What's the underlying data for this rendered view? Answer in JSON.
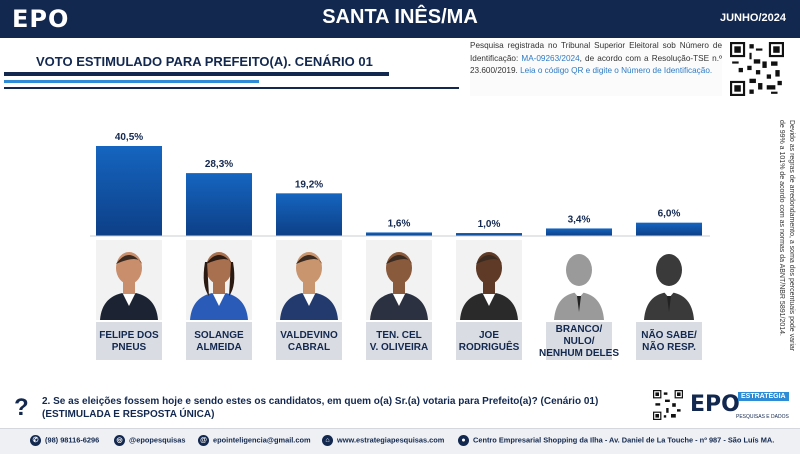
{
  "header": {
    "logo": "EPO",
    "title": "SANTA INÊS/MA",
    "date": "JUNHO/2024"
  },
  "subtitle": "VOTO ESTIMULADO PARA PREFEITO(A). CENÁRIO 01",
  "registration": {
    "text_a": "Pesquisa registrada no Tribunal Superior Eleitoral sob Número de Identificação: ",
    "code": "MA-09263/2024",
    "text_b": ", de acordo com a Resolução-TSE n.º 23.600/2019. ",
    "text_c": "Leia o código QR e digite o Número de Identificação."
  },
  "side_note": "Devido as regras de arredondamento, a soma dos percentuais pode variar de 99% a 101% de acordo com as normas da ABNT/NBR 5891/2014.",
  "chart_data": {
    "type": "bar",
    "categories": [
      [
        "FELIPE DOS",
        "PNEUS"
      ],
      [
        "SOLANGE",
        "ALMEIDA"
      ],
      [
        "VALDEVINO",
        "CABRAL"
      ],
      [
        "TEN. CEL",
        "V. OLIVEIRA"
      ],
      [
        "JOE",
        "RODRIGUÊS"
      ],
      [
        "BRANCO/",
        "NULO/",
        "NENHUM DELES"
      ],
      [
        "NÃO SABE/",
        "NÃO RESP."
      ]
    ],
    "values": [
      40.5,
      28.3,
      19.2,
      1.6,
      1.0,
      3.4,
      6.0
    ],
    "value_labels": [
      "40,5%",
      "28,3%",
      "19,2%",
      "1,6%",
      "1,0%",
      "3,4%",
      "6,0%"
    ],
    "photo_types": [
      "person",
      "person",
      "person",
      "person",
      "person",
      "silhouette",
      "silhouette"
    ],
    "colors": {
      "bar": "#1565c0",
      "bar_dark": "#0d3f86",
      "label_bg": "#d9dde3",
      "text": "#13284f"
    }
  },
  "question": {
    "line1": "2. Se as eleições fossem hoje e sendo estes os candidatos, em quem o(a) Sr.(a) votaria para Prefeito(a)? (Cenário 01)",
    "line2": "(ESTIMULADA E RESPOSTA ÚNICA)"
  },
  "bottom_logo": {
    "main": "EPO",
    "sub": "ESTRATÉGIA",
    "tag": "PESQUISAS E DADOS"
  },
  "footer": {
    "phone": "(98) 98116-6296",
    "instagram": "@epopesquisas",
    "email": "epointeligencia@gmail.com",
    "site": "www.estrategiapesquisas.com",
    "address": "Centro Empresarial Shopping da Ilha - Av. Daniel de La Touche - nº 987 - São Luís MA."
  },
  "icons": [
    "whatsapp-icon",
    "instagram-icon",
    "email-icon",
    "web-icon",
    "location-icon",
    "qr-code-icon",
    "question-mark-icon"
  ]
}
